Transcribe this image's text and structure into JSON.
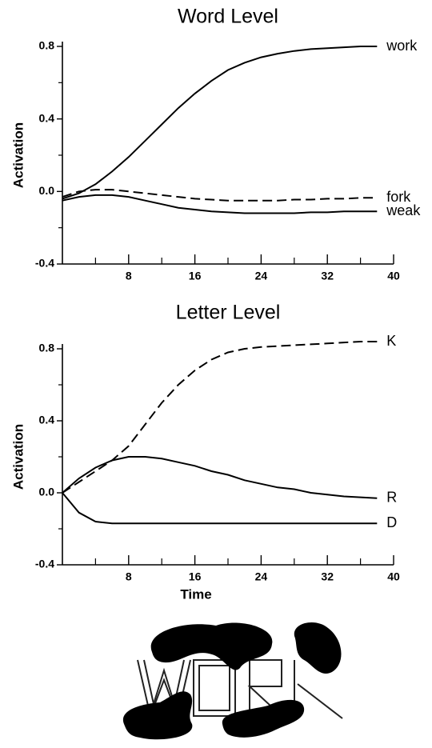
{
  "chart_data": [
    {
      "type": "line",
      "title": "Word Level",
      "ylabel": "Activation",
      "x": [
        0,
        2,
        4,
        6,
        8,
        10,
        12,
        14,
        16,
        18,
        20,
        22,
        24,
        26,
        28,
        30,
        32,
        34,
        36,
        38
      ],
      "series": [
        {
          "name": "work",
          "color": "#000000",
          "dash": false,
          "values": [
            -0.04,
            -0.01,
            0.04,
            0.11,
            0.19,
            0.28,
            0.37,
            0.46,
            0.54,
            0.61,
            0.67,
            0.71,
            0.74,
            0.76,
            0.775,
            0.785,
            0.79,
            0.795,
            0.8,
            0.8
          ]
        },
        {
          "name": "fork",
          "color": "#000000",
          "dash": true,
          "values": [
            -0.03,
            0.0,
            0.01,
            0.01,
            0.0,
            -0.01,
            -0.02,
            -0.03,
            -0.04,
            -0.045,
            -0.05,
            -0.05,
            -0.05,
            -0.05,
            -0.045,
            -0.045,
            -0.04,
            -0.04,
            -0.035,
            -0.035
          ]
        },
        {
          "name": "weak",
          "color": "#000000",
          "dash": false,
          "values": [
            -0.05,
            -0.03,
            -0.02,
            -0.02,
            -0.03,
            -0.05,
            -0.07,
            -0.09,
            -0.1,
            -0.11,
            -0.115,
            -0.12,
            -0.12,
            -0.12,
            -0.12,
            -0.115,
            -0.115,
            -0.11,
            -0.11,
            -0.11
          ]
        }
      ],
      "xlim": [
        0,
        40
      ],
      "xticks": [
        8,
        16,
        24,
        32,
        40
      ],
      "x_minor_ticks": [
        4,
        12,
        20,
        28,
        36
      ],
      "ylim": [
        -0.4,
        0.8
      ],
      "yticks": [
        -0.4,
        {
          "value": 0,
          "label": "0.0"
        },
        0.4,
        0.8
      ],
      "y_minor_ticks": [
        -0.2,
        0.2,
        0.6
      ]
    },
    {
      "type": "line",
      "title": "Letter Level",
      "ylabel": "Activation",
      "xlabel": "Time",
      "x": [
        0,
        2,
        4,
        6,
        8,
        10,
        12,
        14,
        16,
        18,
        20,
        22,
        24,
        26,
        28,
        30,
        32,
        34,
        36,
        38
      ],
      "series": [
        {
          "name": "K",
          "color": "#000000",
          "dash": true,
          "values": [
            0,
            0.06,
            0.12,
            0.18,
            0.26,
            0.38,
            0.5,
            0.6,
            0.68,
            0.74,
            0.78,
            0.8,
            0.81,
            0.815,
            0.82,
            0.825,
            0.83,
            0.835,
            0.84,
            0.84
          ]
        },
        {
          "name": "R",
          "color": "#000000",
          "dash": false,
          "values": [
            0,
            0.08,
            0.14,
            0.18,
            0.2,
            0.2,
            0.19,
            0.17,
            0.15,
            0.12,
            0.1,
            0.07,
            0.05,
            0.03,
            0.02,
            0.0,
            -0.01,
            -0.02,
            -0.025,
            -0.03
          ]
        },
        {
          "name": "D",
          "color": "#000000",
          "dash": false,
          "values": [
            0,
            -0.11,
            -0.16,
            -0.17,
            -0.17,
            -0.17,
            -0.17,
            -0.17,
            -0.17,
            -0.17,
            -0.17,
            -0.17,
            -0.17,
            -0.17,
            -0.17,
            -0.17,
            -0.17,
            -0.17,
            -0.17,
            -0.17
          ]
        }
      ],
      "xlim": [
        0,
        40
      ],
      "xticks": [
        8,
        16,
        24,
        32,
        40
      ],
      "x_minor_ticks": [
        4,
        12,
        20,
        28,
        36
      ],
      "ylim": [
        -0.4,
        0.8
      ],
      "yticks": [
        -0.4,
        {
          "value": 0,
          "label": "0.0"
        },
        0.4,
        0.8
      ],
      "y_minor_ticks": [
        -0.2,
        0.2,
        0.6
      ]
    }
  ]
}
